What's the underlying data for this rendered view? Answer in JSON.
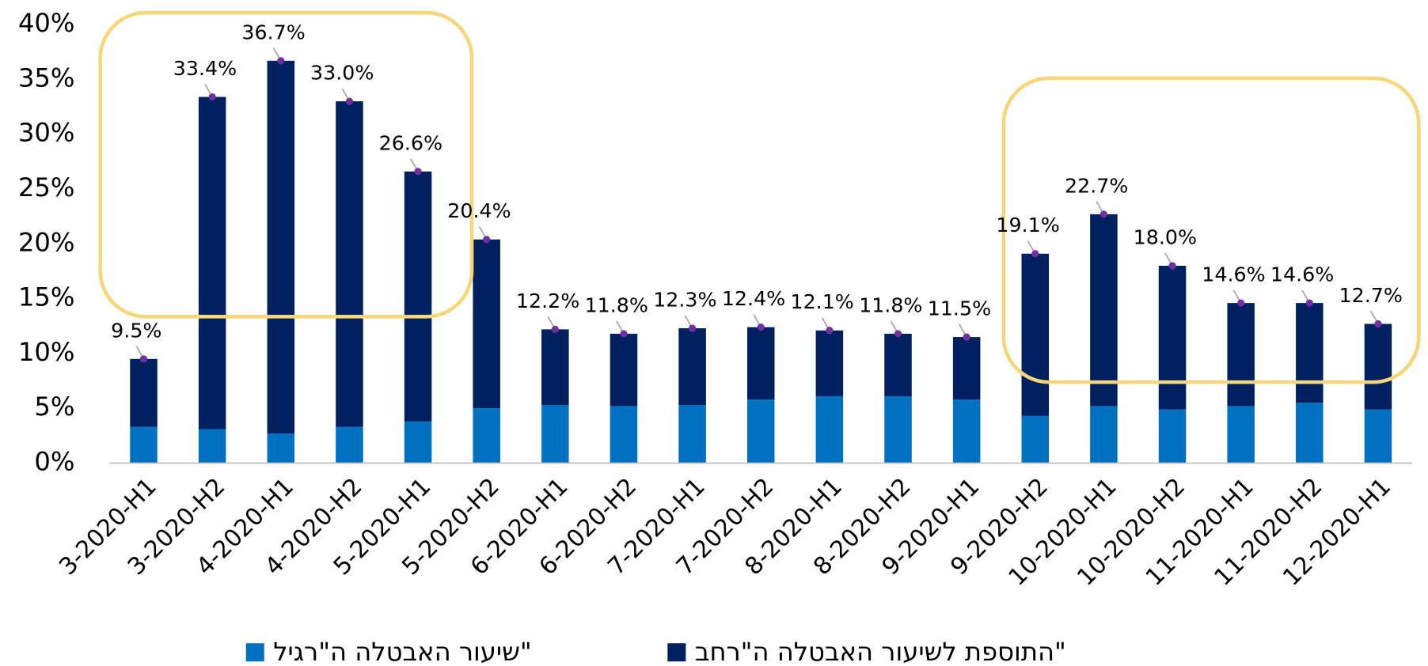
{
  "chart_data": {
    "type": "stacked-bar",
    "categories": [
      "3-2020-H1",
      "3-2020-H2",
      "4-2020-H1",
      "4-2020-H2",
      "5-2020-H1",
      "5-2020-H2",
      "6-2020-H1",
      "6-2020-H2",
      "7-2020-H1",
      "7-2020-H2",
      "8-2020-H1",
      "8-2020-H2",
      "9-2020-H1",
      "9-2020-H2",
      "10-2020-H1",
      "10-2020-H2",
      "11-2020-H1",
      "11-2020-H2",
      "12-2020-H1"
    ],
    "series": [
      {
        "name": "שיעור האבטלה ה\"רגיל\"",
        "color": "#0070c0",
        "values": [
          3.3,
          3.1,
          2.7,
          3.3,
          3.8,
          5.0,
          5.3,
          5.2,
          5.3,
          5.8,
          6.1,
          6.1,
          5.8,
          4.3,
          5.2,
          4.9,
          5.2,
          5.5,
          4.9
        ]
      },
      {
        "name": "התוספת לשיעור האבטלה ה\"רחב\"",
        "color": "#002060",
        "values": [
          6.2,
          30.3,
          34.0,
          29.7,
          22.8,
          15.4,
          6.9,
          6.6,
          7.0,
          6.6,
          6.0,
          5.7,
          5.7,
          14.8,
          17.5,
          13.1,
          9.4,
          9.1,
          7.8
        ]
      }
    ],
    "totals": [
      9.5,
      33.4,
      36.7,
      33.0,
      26.6,
      20.4,
      12.2,
      11.8,
      12.3,
      12.4,
      12.1,
      11.8,
      11.5,
      19.1,
      22.7,
      18.0,
      14.6,
      14.6,
      12.7
    ],
    "totals_labels": [
      "9.5%",
      "33.4%",
      "36.7%",
      "33.0%",
      "26.6%",
      "20.4%",
      "12.2%",
      "11.8%",
      "12.3%",
      "12.4%",
      "12.1%",
      "11.8%",
      "11.5%",
      "19.1%",
      "22.7%",
      "18.0%",
      "14.6%",
      "14.6%",
      "12.7%"
    ],
    "total_marker_color": "#7030a0",
    "ylim": [
      0,
      40
    ],
    "yticks": [
      {
        "value": 0,
        "label": "0%"
      },
      {
        "value": 5,
        "label": "5%"
      },
      {
        "value": 10,
        "label": "10%"
      },
      {
        "value": 15,
        "label": "15%"
      },
      {
        "value": 20,
        "label": "20%"
      },
      {
        "value": 25,
        "label": "25%"
      },
      {
        "value": 30,
        "label": "30%"
      },
      {
        "value": 35,
        "label": "35%"
      },
      {
        "value": 40,
        "label": "40%"
      }
    ],
    "grid": false,
    "legend": "bottom"
  }
}
